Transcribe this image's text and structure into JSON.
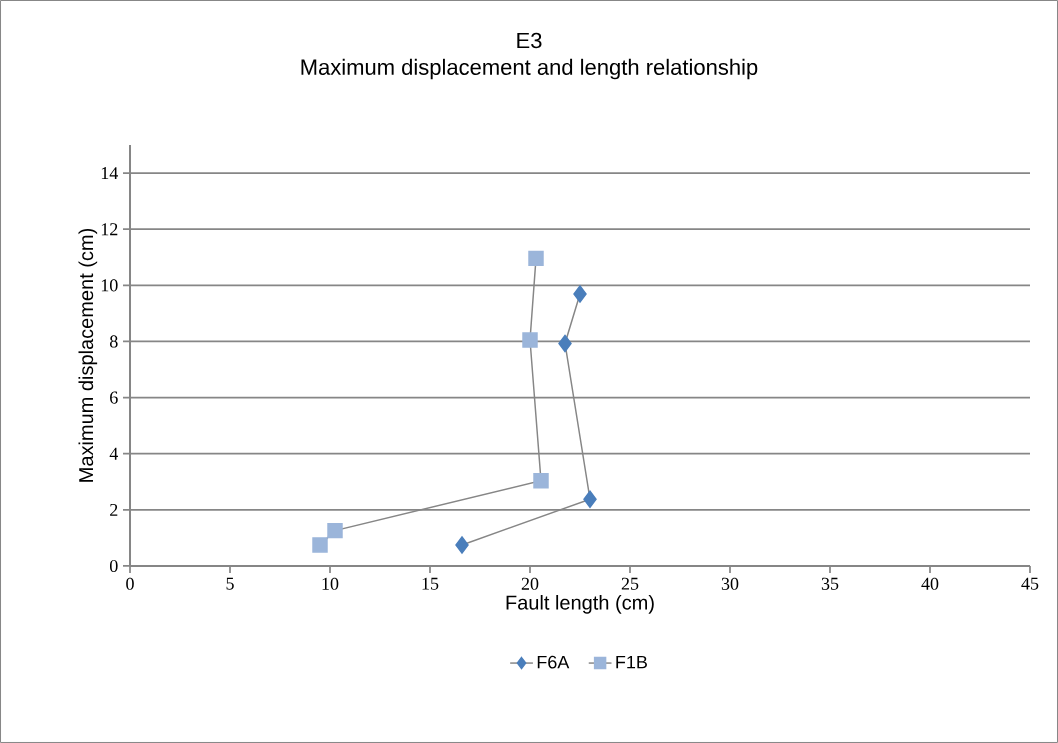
{
  "chart_data": {
    "type": "line",
    "title": "E3",
    "subtitle": "Maximum displacement and length relationship",
    "xlabel": "Fault length (cm)",
    "ylabel": "Maximum displacement (cm)",
    "xlim": [
      0,
      45
    ],
    "xticks": [
      0,
      5,
      10,
      15,
      20,
      25,
      30,
      35,
      40,
      45
    ],
    "ylim": [
      0,
      15
    ],
    "yticks": [
      0,
      2,
      4,
      6,
      8,
      10,
      12,
      14
    ],
    "grid": "y",
    "legend": "bottom",
    "series": [
      {
        "name": "F6A",
        "color": "#4a7ebb",
        "marker": "diamond",
        "x": [
          16.6,
          23.0,
          21.75,
          22.5
        ],
        "values": [
          0.75,
          2.38,
          7.93,
          9.69
        ]
      },
      {
        "name": "F1B",
        "color": "#9bb5da",
        "marker": "square",
        "x": [
          9.5,
          10.25,
          20.55,
          20.0,
          20.3
        ],
        "values": [
          0.75,
          1.26,
          3.04,
          8.05,
          10.96
        ]
      }
    ]
  }
}
